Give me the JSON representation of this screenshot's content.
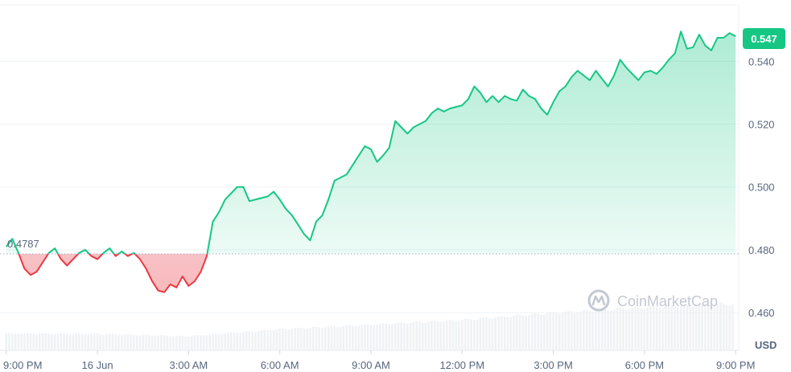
{
  "chart_data": {
    "type": "line",
    "currency_label": "USD",
    "watermark": "CoinMarketCap",
    "reference_value": 0.4787,
    "reference_label": "0.4787",
    "current_value": 0.547,
    "current_label": "0.547",
    "ylim": [
      0.448,
      0.558
    ],
    "y_ticks": [
      {
        "value": 0.46,
        "label": "0.460"
      },
      {
        "value": 0.48,
        "label": "0.480"
      },
      {
        "value": 0.5,
        "label": "0.500"
      },
      {
        "value": 0.52,
        "label": "0.520"
      },
      {
        "value": 0.54,
        "label": "0.540"
      }
    ],
    "xlim": [
      -0.1,
      24.1
    ],
    "x_ticks": [
      {
        "value": 0,
        "label": "9:00 PM"
      },
      {
        "value": 3,
        "label": "16 Jun"
      },
      {
        "value": 6,
        "label": "3:00 AM"
      },
      {
        "value": 9,
        "label": "6:00 AM"
      },
      {
        "value": 12,
        "label": "9:00 AM"
      },
      {
        "value": 15,
        "label": "12:00 PM"
      },
      {
        "value": 18,
        "label": "3:00 PM"
      },
      {
        "value": 21,
        "label": "6:00 PM"
      },
      {
        "value": 24,
        "label": "9:00 PM"
      }
    ],
    "colors": {
      "up": "#16c784",
      "down": "#ea3943",
      "grid": "#eff2f5",
      "tick_text": "#58667e",
      "volume": "#eff2f5"
    },
    "series": [
      {
        "values": [
          [
            0.0,
            0.481
          ],
          [
            0.2,
            0.4835
          ],
          [
            0.4,
            0.479
          ],
          [
            0.6,
            0.474
          ],
          [
            0.8,
            0.472
          ],
          [
            1.0,
            0.473
          ],
          [
            1.2,
            0.476
          ],
          [
            1.4,
            0.479
          ],
          [
            1.6,
            0.4805
          ],
          [
            1.8,
            0.477
          ],
          [
            2.0,
            0.475
          ],
          [
            2.2,
            0.477
          ],
          [
            2.4,
            0.479
          ],
          [
            2.6,
            0.48
          ],
          [
            2.8,
            0.478
          ],
          [
            3.0,
            0.477
          ],
          [
            3.2,
            0.479
          ],
          [
            3.4,
            0.4805
          ],
          [
            3.6,
            0.478
          ],
          [
            3.8,
            0.4795
          ],
          [
            4.0,
            0.478
          ],
          [
            4.2,
            0.479
          ],
          [
            4.4,
            0.477
          ],
          [
            4.6,
            0.474
          ],
          [
            4.8,
            0.47
          ],
          [
            5.0,
            0.467
          ],
          [
            5.2,
            0.4665
          ],
          [
            5.4,
            0.469
          ],
          [
            5.6,
            0.468
          ],
          [
            5.8,
            0.4715
          ],
          [
            6.0,
            0.4685
          ],
          [
            6.2,
            0.47
          ],
          [
            6.4,
            0.473
          ],
          [
            6.6,
            0.478
          ],
          [
            6.8,
            0.489
          ],
          [
            7.0,
            0.492
          ],
          [
            7.2,
            0.496
          ],
          [
            7.4,
            0.498
          ],
          [
            7.6,
            0.5
          ],
          [
            7.8,
            0.5
          ],
          [
            8.0,
            0.4955
          ],
          [
            8.2,
            0.496
          ],
          [
            8.4,
            0.4965
          ],
          [
            8.6,
            0.497
          ],
          [
            8.8,
            0.4985
          ],
          [
            9.0,
            0.496
          ],
          [
            9.2,
            0.493
          ],
          [
            9.4,
            0.491
          ],
          [
            9.6,
            0.488
          ],
          [
            9.8,
            0.485
          ],
          [
            10.0,
            0.483
          ],
          [
            10.2,
            0.489
          ],
          [
            10.4,
            0.491
          ],
          [
            10.6,
            0.496
          ],
          [
            10.8,
            0.502
          ],
          [
            11.0,
            0.503
          ],
          [
            11.2,
            0.504
          ],
          [
            11.4,
            0.507
          ],
          [
            11.6,
            0.51
          ],
          [
            11.8,
            0.513
          ],
          [
            12.0,
            0.512
          ],
          [
            12.2,
            0.508
          ],
          [
            12.4,
            0.51
          ],
          [
            12.6,
            0.5125
          ],
          [
            12.8,
            0.521
          ],
          [
            13.0,
            0.519
          ],
          [
            13.2,
            0.517
          ],
          [
            13.4,
            0.519
          ],
          [
            13.6,
            0.52
          ],
          [
            13.8,
            0.521
          ],
          [
            14.0,
            0.5235
          ],
          [
            14.2,
            0.525
          ],
          [
            14.4,
            0.524
          ],
          [
            14.6,
            0.525
          ],
          [
            14.8,
            0.5255
          ],
          [
            15.0,
            0.526
          ],
          [
            15.2,
            0.528
          ],
          [
            15.4,
            0.532
          ],
          [
            15.6,
            0.53
          ],
          [
            15.8,
            0.527
          ],
          [
            16.0,
            0.529
          ],
          [
            16.2,
            0.527
          ],
          [
            16.4,
            0.529
          ],
          [
            16.6,
            0.528
          ],
          [
            16.8,
            0.5275
          ],
          [
            17.0,
            0.531
          ],
          [
            17.2,
            0.529
          ],
          [
            17.4,
            0.528
          ],
          [
            17.6,
            0.525
          ],
          [
            17.8,
            0.523
          ],
          [
            18.0,
            0.527
          ],
          [
            18.2,
            0.5305
          ],
          [
            18.4,
            0.532
          ],
          [
            18.6,
            0.535
          ],
          [
            18.8,
            0.537
          ],
          [
            19.0,
            0.5355
          ],
          [
            19.2,
            0.534
          ],
          [
            19.4,
            0.537
          ],
          [
            19.6,
            0.5345
          ],
          [
            19.8,
            0.532
          ],
          [
            20.0,
            0.5355
          ],
          [
            20.2,
            0.5405
          ],
          [
            20.4,
            0.538
          ],
          [
            20.6,
            0.536
          ],
          [
            20.8,
            0.534
          ],
          [
            21.0,
            0.5365
          ],
          [
            21.2,
            0.537
          ],
          [
            21.4,
            0.536
          ],
          [
            21.6,
            0.538
          ],
          [
            21.8,
            0.5405
          ],
          [
            22.0,
            0.5425
          ],
          [
            22.2,
            0.5495
          ],
          [
            22.4,
            0.544
          ],
          [
            22.6,
            0.5445
          ],
          [
            22.8,
            0.5485
          ],
          [
            23.0,
            0.545
          ],
          [
            23.2,
            0.5435
          ],
          [
            23.4,
            0.5475
          ],
          [
            23.6,
            0.5475
          ],
          [
            23.8,
            0.549
          ],
          [
            24.0,
            0.548
          ]
        ]
      }
    ],
    "volume_note": "relative trading volume bars (no axis printed)",
    "volume_levels": [
      [
        0,
        0.36
      ],
      [
        3,
        0.35
      ],
      [
        6,
        0.3
      ],
      [
        9,
        0.45
      ],
      [
        12,
        0.55
      ],
      [
        15,
        0.65
      ],
      [
        18,
        0.8
      ],
      [
        21,
        0.92
      ],
      [
        24,
        1.0
      ]
    ]
  }
}
